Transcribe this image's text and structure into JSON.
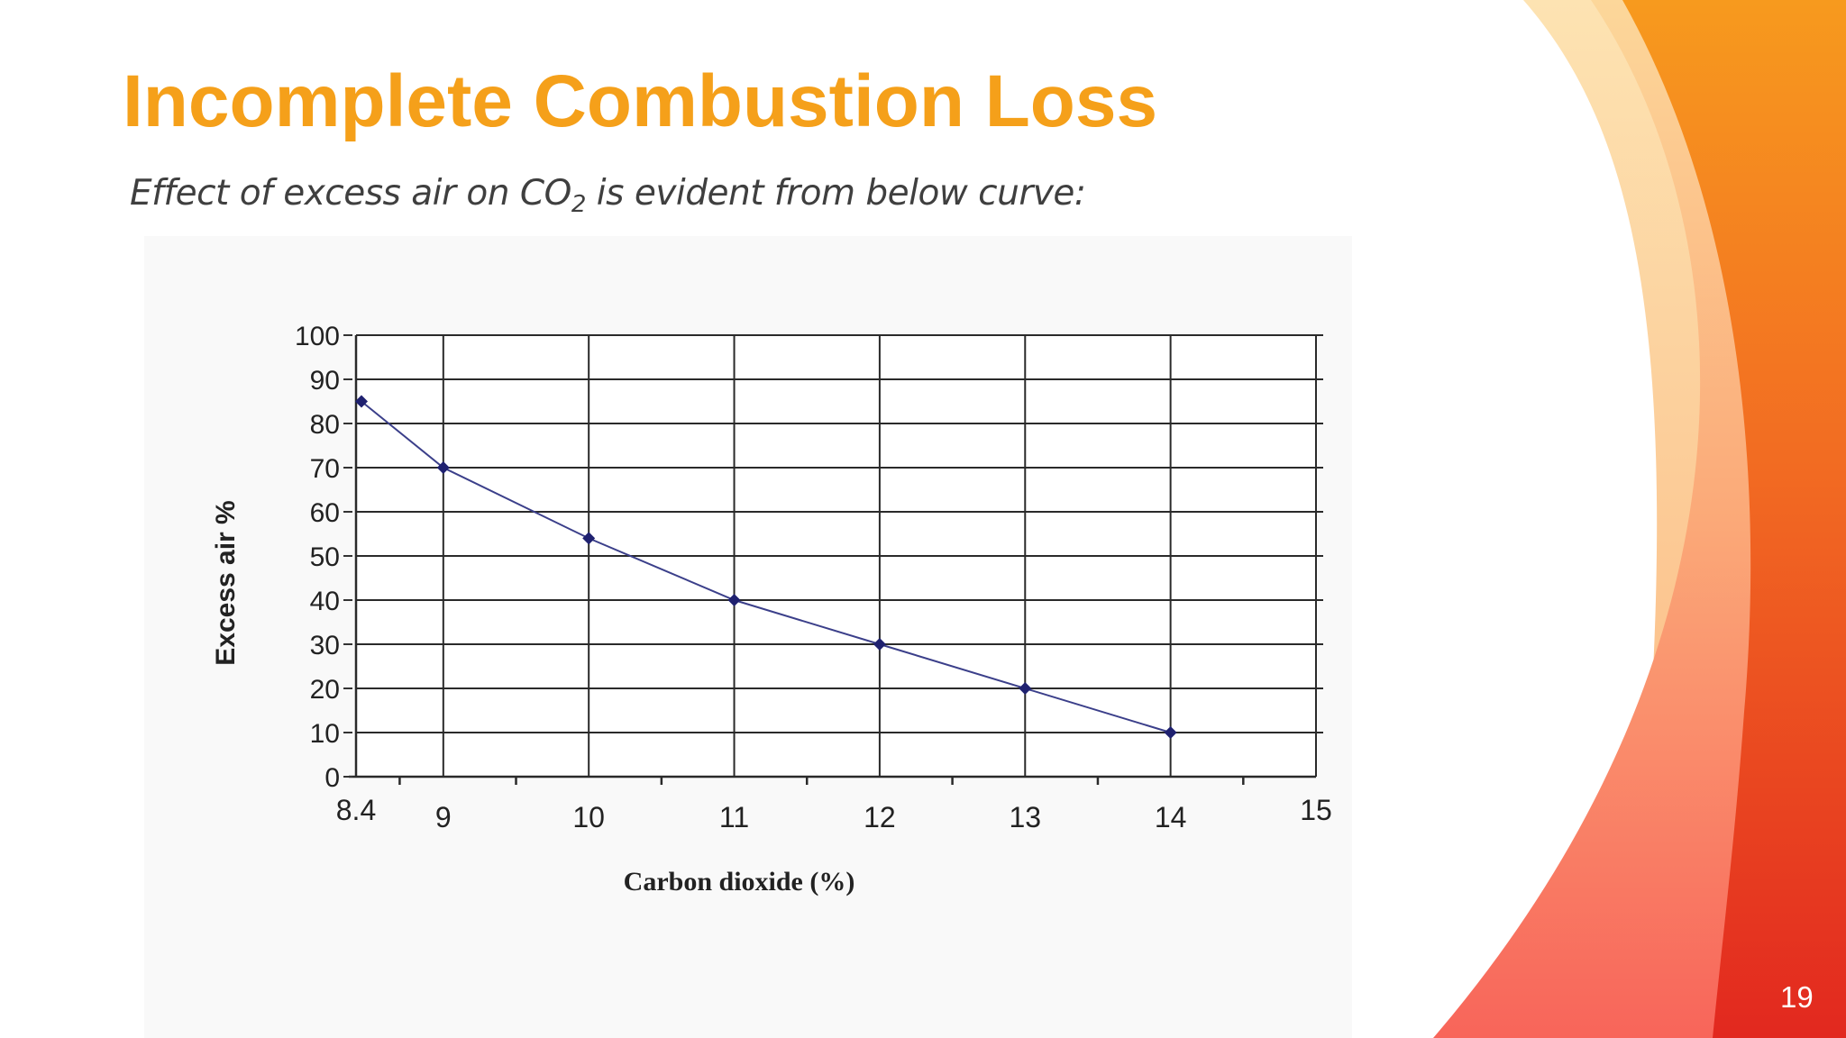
{
  "slide": {
    "title": "Incomplete Combustion Loss",
    "subtitle_before": "Effect of excess air on CO",
    "subtitle_sub": "2",
    "subtitle_after": " is evident from below curve:",
    "page_number": "19"
  },
  "theme": {
    "title_color": "#f5a01a",
    "line_color": "#3b3f8a",
    "marker_color": "#1f2170",
    "accent_orange": "#f7941d",
    "accent_red": "#e5302a"
  },
  "chart_data": {
    "type": "line",
    "title": "",
    "xlabel": "Carbon dioxide (%)",
    "ylabel": "Excess air %",
    "x_ticks": [
      "8.4",
      "9",
      "10",
      "11",
      "12",
      "13",
      "14",
      "15"
    ],
    "y_ticks": [
      "0",
      "10",
      "20",
      "30",
      "40",
      "50",
      "60",
      "70",
      "80",
      "90",
      "100"
    ],
    "xlim": [
      8.4,
      15
    ],
    "ylim": [
      0,
      100
    ],
    "grid": true,
    "series": [
      {
        "x": [
          8.4,
          9,
          10,
          11,
          12,
          13,
          14
        ],
        "y": [
          85,
          70,
          54,
          40,
          30,
          20,
          10
        ]
      }
    ]
  }
}
